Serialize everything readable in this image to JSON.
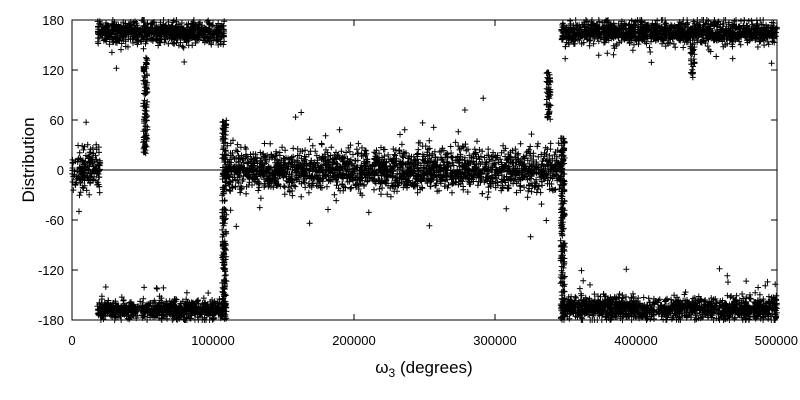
{
  "chart_data": {
    "type": "scatter",
    "title": "",
    "xlabel": {
      "main": "ω",
      "sub": "3",
      "rest": " (degrees)"
    },
    "ylabel": "Distribution",
    "xlim": [
      0,
      500000
    ],
    "ylim": [
      -180,
      180
    ],
    "x_ticks": [
      {
        "value": 0,
        "label": "0"
      },
      {
        "value": 100000,
        "label": "100000"
      },
      {
        "value": 200000,
        "label": "200000"
      },
      {
        "value": 300000,
        "label": "300000"
      },
      {
        "value": 400000,
        "label": "400000"
      },
      {
        "value": 500000,
        "label": "500000"
      }
    ],
    "y_ticks": [
      {
        "value": -180,
        "label": "-180"
      },
      {
        "value": -120,
        "label": "-120"
      },
      {
        "value": -60,
        "label": "-60"
      },
      {
        "value": 0,
        "label": "0"
      },
      {
        "value": 60,
        "label": "60"
      },
      {
        "value": 120,
        "label": "120"
      },
      {
        "value": 180,
        "label": "180"
      }
    ],
    "zero_line": true,
    "grid": false,
    "marker": "+",
    "color": "#000000",
    "regions": [
      {
        "x_start": 0,
        "x_end": 20000,
        "center": 0,
        "spread": 25
      },
      {
        "x_start": 18000,
        "x_end": 108000,
        "center": 165,
        "spread": 12
      },
      {
        "x_start": 18000,
        "x_end": 108000,
        "center": -168,
        "spread": 10
      },
      {
        "x_start": 108000,
        "x_end": 347000,
        "center": 0,
        "spread": 22
      },
      {
        "x_start": 347000,
        "x_end": 500000,
        "center": 165,
        "spread": 12
      },
      {
        "x_start": 347000,
        "x_end": 500000,
        "center": -166,
        "spread": 12
      }
    ],
    "excursions": [
      {
        "x": 52000,
        "y_from": 135,
        "y_to": 20
      },
      {
        "x": 108000,
        "y_from": -180,
        "y_to": 60
      },
      {
        "x": 348000,
        "y_from": -180,
        "y_to": 40
      },
      {
        "x": 338000,
        "y_from": 60,
        "y_to": 118
      },
      {
        "x": 440000,
        "y_from": 150,
        "y_to": 115
      }
    ]
  }
}
